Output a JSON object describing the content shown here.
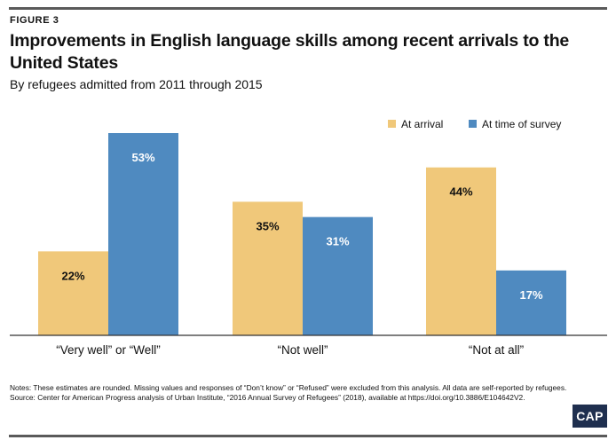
{
  "figure_label": "FIGURE 3",
  "title": "Improvements in English language skills among recent arrivals to the United States",
  "subtitle": "By refugees admitted from 2011 through 2015",
  "chart_data": {
    "type": "bar",
    "categories": [
      "“Very well” or “Well”",
      "“Not well”",
      "“Not at all”"
    ],
    "series": [
      {
        "name": "At arrival",
        "values": [
          22,
          35,
          44
        ],
        "color": "#f0c87a"
      },
      {
        "name": "At time of survey",
        "values": [
          53,
          31,
          17
        ],
        "color": "#4f8ac0"
      }
    ],
    "value_suffix": "%",
    "ylim": [
      0,
      60
    ],
    "grid": false,
    "legend_position": "top-right"
  },
  "notes": "Notes: These estimates are rounded. Missing values and responses of “Don’t know” or “Refused” were excluded from this analysis. All data are self-reported by refugees.",
  "source": "Source: Center for American Progress analysis of Urban Institute, “2016 Annual Survey of Refugees” (2018), available at https://doi.org/10.3886/E104642V2.",
  "logo_text": "CAP"
}
